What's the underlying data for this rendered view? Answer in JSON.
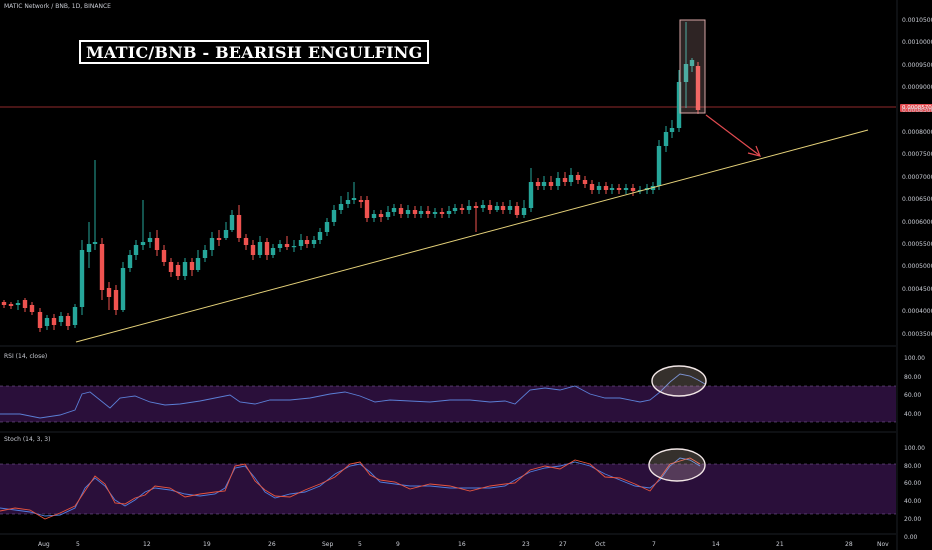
{
  "header": {
    "symbol_line": "MATIC Network / BNB, 1D, BINANCE"
  },
  "annotation": {
    "title": "MATIC/BNB - BEARISH ENGULFING"
  },
  "current_price_tag": "0.0008570",
  "price_axis": {
    "ticks": [
      "0.0010500",
      "0.0010000",
      "0.0009500",
      "0.0009000",
      "0.0008500",
      "0.0008000",
      "0.0007500",
      "0.0007000",
      "0.0006500",
      "0.0006000",
      "0.0005500",
      "0.0005000",
      "0.0004500",
      "0.0004000",
      "0.0003500"
    ]
  },
  "rsi_panel": {
    "label": "RSI (14, close)",
    "ticks": [
      "100.00",
      "80.00",
      "60.00",
      "40.00"
    ]
  },
  "stoch_panel": {
    "label": "Stoch (14, 3, 3)",
    "ticks": [
      "100.00",
      "80.00",
      "60.00",
      "40.00",
      "20.00",
      "0.00"
    ]
  },
  "time_axis": {
    "ticks": [
      "Aug",
      "5",
      "12",
      "19",
      "26",
      "Sep",
      "5",
      "9",
      "16",
      "23",
      "27",
      "Oct",
      "7",
      "14",
      "21",
      "28",
      "Nov"
    ]
  },
  "colors": {
    "up": "#26a69a",
    "down": "#ef5350",
    "trendline": "#e6d27a",
    "rsi_line": "#5b7fd6",
    "stoch_k": "#4f7fe0",
    "stoch_d": "#e8553f",
    "band_fill": "#2a0f3a",
    "price_line": "#c0393b",
    "arrow": "#e24b50"
  }
}
